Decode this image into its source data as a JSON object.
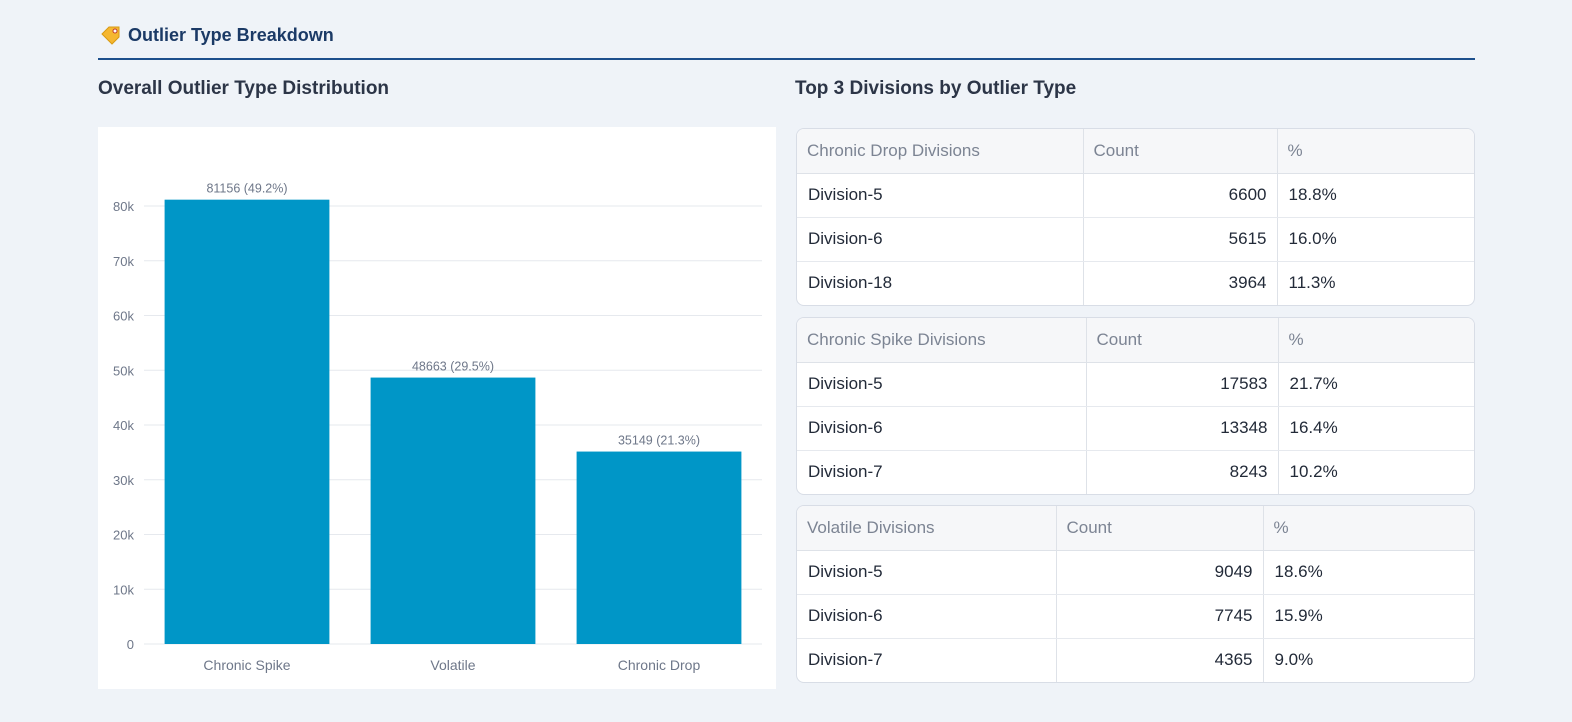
{
  "section": {
    "title": "Outlier Type Breakdown",
    "icon": "tag-icon"
  },
  "left_panel": {
    "title": "Overall Outlier Type Distribution"
  },
  "right_panel": {
    "title": "Top 3 Divisions by Outlier Type"
  },
  "colors": {
    "bar": "#0096c7",
    "accent_line": "#1d4f8c"
  },
  "chart_data": {
    "type": "bar",
    "categories": [
      "Chronic Spike",
      "Volatile",
      "Chronic Drop"
    ],
    "values": [
      81156,
      48663,
      35149
    ],
    "data_labels": [
      "81156 (49.2%)",
      "48663 (29.5%)",
      "35149 (21.3%)"
    ],
    "yticks": [
      0,
      10000,
      20000,
      30000,
      40000,
      50000,
      60000,
      70000,
      80000
    ],
    "ytick_labels": [
      "0",
      "10k",
      "20k",
      "30k",
      "40k",
      "50k",
      "60k",
      "70k",
      "80k"
    ],
    "ylim": [
      0,
      80000
    ],
    "grid": true,
    "xlabel": "",
    "ylabel": "",
    "title": ""
  },
  "tables": [
    {
      "headers": [
        "Chronic Drop Divisions",
        "Count",
        "%"
      ],
      "rows": [
        [
          "Division-5",
          "6600",
          "18.8%"
        ],
        [
          "Division-6",
          "5615",
          "16.0%"
        ],
        [
          "Division-18",
          "3964",
          "11.3%"
        ]
      ]
    },
    {
      "headers": [
        "Chronic Spike Divisions",
        "Count",
        "%"
      ],
      "rows": [
        [
          "Division-5",
          "17583",
          "21.7%"
        ],
        [
          "Division-6",
          "13348",
          "16.4%"
        ],
        [
          "Division-7",
          "8243",
          "10.2%"
        ]
      ]
    },
    {
      "headers": [
        "Volatile Divisions",
        "Count",
        "%"
      ],
      "rows": [
        [
          "Division-5",
          "9049",
          "18.6%"
        ],
        [
          "Division-6",
          "7745",
          "15.9%"
        ],
        [
          "Division-7",
          "4365",
          "9.0%"
        ]
      ]
    }
  ]
}
